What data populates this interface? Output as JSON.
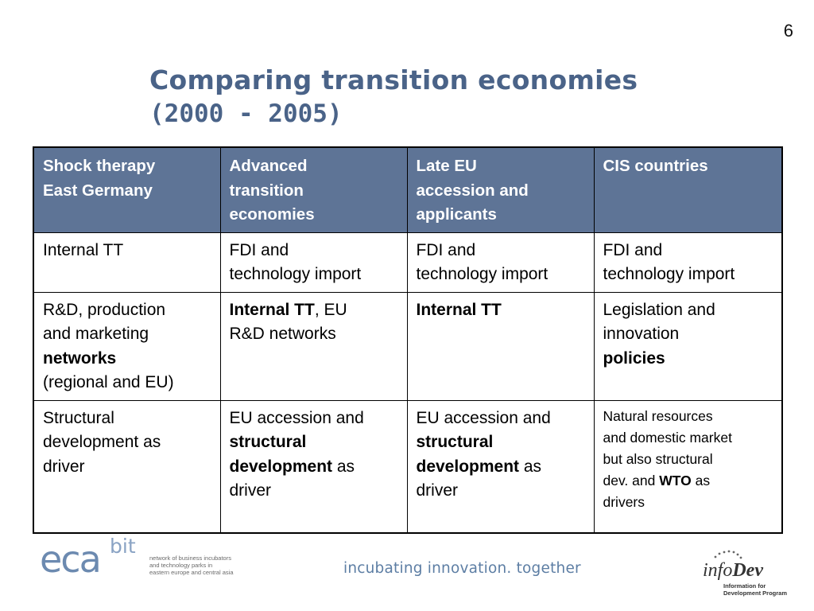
{
  "page_number": "6",
  "title": {
    "line1": "Comparing transition economies",
    "line2": "(2000 - 2005)"
  },
  "table": {
    "headers": [
      [
        "Shock therapy",
        "East Germany"
      ],
      [
        "Advanced",
        "transition",
        "economies"
      ],
      [
        "Late EU",
        "accession and",
        "applicants"
      ],
      [
        "CIS countries"
      ]
    ],
    "row1": {
      "c1": "Internal TT",
      "c2a": "FDI and",
      "c2b": "technology import",
      "c3a": "FDI and",
      "c3b": "technology import",
      "c4a": "FDI and",
      "c4b": "technology import"
    },
    "row2": {
      "c1a": "R&D, production",
      "c1b": "and marketing",
      "c1c": "networks",
      "c1d": "(regional and EU)",
      "c2bold": "Internal TT",
      "c2a": ", EU",
      "c2b": "R&D networks",
      "c3bold": "Internal TT",
      "c4a": "Legislation and",
      "c4b": "innovation",
      "c4c": "policies"
    },
    "row3": {
      "c1a": "Structural",
      "c1b": "development as",
      "c1c": "driver",
      "c2a": "EU accession and",
      "c2b": "structural",
      "c2c": "development",
      "c2d": " as",
      "c2e": "driver",
      "c3a": "EU accession and",
      "c3b": "structural",
      "c3c": "development",
      "c3d": " as",
      "c3e": "driver",
      "c4a": "Natural resources",
      "c4b": "and domestic market",
      "c4c": "but also structural",
      "c4d": "dev.  and ",
      "c4e": "WTO",
      "c4f": " as",
      "c4g": "drivers"
    }
  },
  "footer": {
    "eca_logo": "eca",
    "eca_sup": "bit",
    "network_desc": [
      "network of business incubators",
      "and technology parks in",
      "eastern europe and central asia"
    ],
    "tagline": "incubating innovation. together",
    "infodev_info": "info",
    "infodev_dev": "Dev",
    "infodev_sub": [
      "Information for",
      "Development Program"
    ]
  },
  "colors": {
    "title": "#4a6388",
    "header_bg": "#5e7496",
    "tagline": "#5d7ea4",
    "eca_logo": "#6c8ab0"
  }
}
